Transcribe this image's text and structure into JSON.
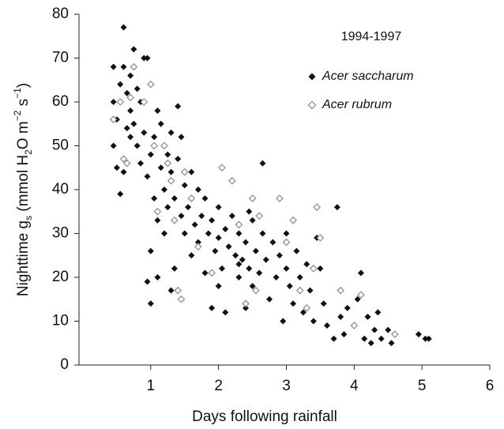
{
  "chart_data": {
    "type": "scatter",
    "annotation": "1994-1997",
    "xlabel": "Days following rainfall",
    "ylabel_parts": [
      "Nighttime g",
      "s",
      " (mmol H",
      "2",
      "O m",
      "−2",
      " s",
      "−1",
      ")"
    ],
    "xlim": [
      0,
      6
    ],
    "xticks": [
      1,
      2,
      3,
      4,
      5,
      6
    ],
    "ylim": [
      0,
      80
    ],
    "yticks": [
      0,
      10,
      20,
      30,
      40,
      50,
      60,
      70,
      80
    ],
    "legend_position": "upper right",
    "series": [
      {
        "name": "Acer saccharum",
        "color": "#111111",
        "marker": "filled-diamond",
        "x": [
          0.45,
          0.45,
          0.45,
          0.5,
          0.55,
          0.6,
          0.6,
          0.55,
          0.65,
          0.7,
          0.7,
          0.75,
          0.75,
          0.8,
          0.8,
          0.85,
          0.85,
          0.9,
          0.95,
          0.5,
          0.6,
          0.65,
          0.7,
          0.9,
          0.95,
          1.0,
          1.0,
          1.0,
          0.95,
          1.05,
          1.05,
          1.1,
          1.1,
          1.15,
          1.15,
          1.2,
          1.2,
          1.25,
          1.25,
          1.3,
          1.3,
          1.35,
          1.35,
          1.4,
          1.4,
          1.45,
          1.45,
          1.5,
          1.5,
          1.1,
          1.3,
          1.55,
          1.6,
          1.6,
          1.65,
          1.7,
          1.7,
          1.75,
          1.8,
          1.8,
          1.85,
          1.9,
          1.95,
          2.0,
          2.0,
          2.05,
          2.1,
          2.1,
          2.15,
          2.2,
          1.9,
          2.0,
          2.25,
          2.3,
          2.3,
          2.35,
          2.4,
          2.4,
          2.45,
          2.5,
          2.5,
          2.55,
          2.6,
          2.65,
          2.65,
          2.7,
          2.75,
          2.8,
          2.3,
          2.45,
          2.85,
          2.9,
          2.95,
          3.0,
          3.0,
          3.05,
          3.1,
          3.15,
          3.2,
          3.25,
          3.3,
          3.35,
          3.4,
          3.45,
          3.5,
          3.55,
          3.6,
          3.7,
          3.75,
          3.8,
          3.85,
          3.9,
          4.0,
          4.05,
          4.1,
          4.15,
          4.2,
          4.25,
          4.3,
          4.35,
          4.4,
          4.5,
          4.55,
          4.95,
          5.05,
          5.1
        ],
        "values": [
          68,
          60,
          50,
          45,
          39,
          77,
          68,
          64,
          62,
          66,
          58,
          72,
          55,
          63,
          50,
          60,
          46,
          70,
          70,
          56,
          44,
          54,
          52,
          53,
          43,
          48,
          26,
          14,
          19,
          38,
          52,
          58,
          33,
          45,
          55,
          40,
          30,
          36,
          48,
          53,
          44,
          38,
          22,
          59,
          47,
          34,
          52,
          41,
          30,
          20,
          17,
          36,
          44,
          25,
          32,
          40,
          28,
          34,
          38,
          21,
          30,
          33,
          26,
          36,
          29,
          22,
          31,
          12,
          27,
          34,
          13,
          18,
          25,
          30,
          20,
          24,
          28,
          13,
          22,
          33,
          18,
          26,
          21,
          46,
          30,
          24,
          15,
          28,
          23,
          35,
          20,
          25,
          10,
          22,
          30,
          18,
          14,
          26,
          20,
          12,
          23,
          17,
          10,
          29,
          22,
          14,
          9,
          6,
          36,
          11,
          7,
          13,
          9,
          15,
          21,
          6,
          11,
          5,
          8,
          12,
          6,
          8,
          5,
          7,
          6,
          6
        ]
      },
      {
        "name": "Acer rubrum",
        "color": "#8a8a8a",
        "marker": "open-diamond",
        "x": [
          0.45,
          0.55,
          0.6,
          0.65,
          0.7,
          0.75,
          0.9,
          1.0,
          1.05,
          1.1,
          1.2,
          1.25,
          1.3,
          1.35,
          1.4,
          1.45,
          1.5,
          1.6,
          1.7,
          1.9,
          2.05,
          2.2,
          2.3,
          2.4,
          2.5,
          2.55,
          2.6,
          2.9,
          3.0,
          3.1,
          3.2,
          3.3,
          3.4,
          3.45,
          3.5,
          3.8,
          4.0,
          4.1,
          4.6
        ],
        "values": [
          56,
          60,
          47,
          46,
          61,
          68,
          60,
          64,
          50,
          35,
          50,
          46,
          42,
          33,
          17,
          15,
          44,
          38,
          27,
          21,
          45,
          42,
          32,
          14,
          38,
          17,
          34,
          38,
          28,
          33,
          17,
          13,
          22,
          36,
          29,
          17,
          9,
          16,
          7
        ]
      }
    ]
  }
}
